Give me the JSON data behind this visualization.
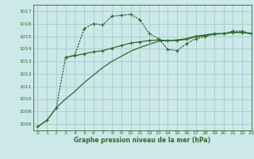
{
  "bg_color": "#cce8e8",
  "grid_color": "#aacece",
  "line_color": "#2d6a2d",
  "title": "Graphe pression niveau de la mer (hPa)",
  "xlim": [
    -0.5,
    23
  ],
  "ylim": [
    1007.5,
    1017.5
  ],
  "yticks": [
    1008,
    1009,
    1010,
    1011,
    1012,
    1013,
    1014,
    1015,
    1016,
    1017
  ],
  "xticks": [
    0,
    1,
    2,
    3,
    4,
    5,
    6,
    7,
    8,
    9,
    10,
    11,
    12,
    13,
    14,
    15,
    16,
    17,
    18,
    19,
    20,
    21,
    22,
    23
  ],
  "line1_x": [
    0,
    1,
    2,
    3,
    4,
    5,
    6,
    7,
    8,
    9,
    10,
    11,
    12,
    13,
    14,
    15,
    16,
    17,
    18,
    19,
    20,
    21,
    22,
    23
  ],
  "line1_y": [
    1007.8,
    1008.3,
    1009.3,
    1013.3,
    1013.5,
    1015.6,
    1016.0,
    1015.9,
    1016.6,
    1016.65,
    1016.75,
    1016.3,
    1015.2,
    1014.8,
    1013.95,
    1013.85,
    1014.4,
    1014.8,
    1014.95,
    1015.2,
    1015.2,
    1015.4,
    1015.4,
    1015.2
  ],
  "line2_x": [
    3,
    4,
    5,
    6,
    7,
    8,
    9,
    10,
    11,
    12,
    13,
    14,
    15,
    16,
    17,
    18,
    19,
    20,
    21,
    22,
    23
  ],
  "line2_y": [
    1013.3,
    1013.45,
    1013.6,
    1013.75,
    1013.85,
    1014.05,
    1014.25,
    1014.45,
    1014.55,
    1014.65,
    1014.7,
    1014.65,
    1014.65,
    1014.75,
    1014.95,
    1015.05,
    1015.15,
    1015.2,
    1015.3,
    1015.3,
    1015.2
  ],
  "line3_x": [
    0,
    1,
    2,
    3,
    4,
    5,
    6,
    7,
    8,
    9,
    10,
    11,
    12,
    13,
    14,
    15,
    16,
    17,
    18,
    19,
    20,
    21,
    22,
    23
  ],
  "line3_y": [
    1007.8,
    1008.3,
    1009.3,
    1010.0,
    1010.6,
    1011.3,
    1011.9,
    1012.5,
    1013.0,
    1013.4,
    1013.8,
    1014.1,
    1014.35,
    1014.6,
    1014.65,
    1014.7,
    1014.8,
    1015.0,
    1015.1,
    1015.2,
    1015.2,
    1015.3,
    1015.3,
    1015.2
  ]
}
